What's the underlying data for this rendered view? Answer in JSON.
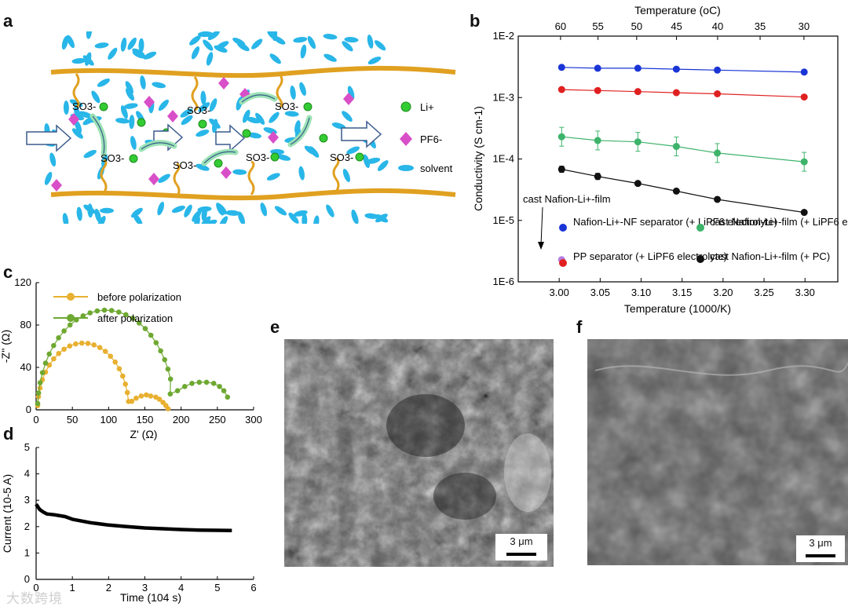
{
  "panel_labels": {
    "a": "a",
    "b": "b",
    "c": "c",
    "d": "d",
    "e": "e",
    "f": "f"
  },
  "schematic": {
    "groups": [
      "SO3-",
      "SO3-",
      "SO3-",
      "SO3-",
      "SO3-",
      "SO3-",
      "SO3-"
    ],
    "legend": [
      {
        "label": "Li+",
        "icon": "li-ion-circle",
        "color": "#33cc33"
      },
      {
        "label": "PF6-",
        "icon": "pf6-diamond",
        "color": "#d94fc8"
      },
      {
        "label": "solvent",
        "icon": "solvent-ellipse",
        "color": "#29b6e8"
      }
    ],
    "colors": {
      "membrane": "#e0a020",
      "li": "#33cc33",
      "pf6": "#d94fc8",
      "solvent": "#29b6e8",
      "arrow": "#3a5a8c"
    }
  },
  "scale_bars": {
    "e": "3 μm",
    "f": "3 μm"
  },
  "watermark": "大数跨境",
  "chart_data": [
    {
      "id": "b",
      "type": "scatter",
      "xlabel": "Temperature (1000/K)",
      "ylabel": "Conductivity (S cm-1)",
      "top_xlabel": "Temperature (oC)",
      "xlim": [
        2.95,
        3.34
      ],
      "ylim": [
        1e-06,
        0.01
      ],
      "yscale": "log",
      "xticks": [
        "3.00",
        "3.05",
        "3.10",
        "3.15",
        "3.20",
        "3.25",
        "3.30"
      ],
      "yticks": [
        "1E-6",
        "1E-5",
        "1E-4",
        "1E-3",
        "1E-2"
      ],
      "top_xticks": [
        "60",
        "55",
        "50",
        "45",
        "40",
        "35",
        "30"
      ],
      "annotation": "cast Nafion-Li+-film",
      "series": [
        {
          "name": "Nafion-Li+-NF separator (+ LiPF6 electrolyte)",
          "color": "#1a35d6",
          "x": [
            3.003,
            3.047,
            3.096,
            3.143,
            3.193,
            3.299
          ],
          "y": [
            0.0031,
            0.003,
            0.003,
            0.0029,
            0.0028,
            0.0026
          ]
        },
        {
          "name": "PP separator (+ LiPF6 electrolyte)",
          "color": "#e02020",
          "x": [
            3.003,
            3.047,
            3.096,
            3.143,
            3.193,
            3.299
          ],
          "y": [
            0.00135,
            0.0013,
            0.00125,
            0.0012,
            0.00115,
            0.00102
          ]
        },
        {
          "name": "cast Nafion-Li+-film (+ LiPF6 electrolyte)",
          "color": "#3db36b",
          "x": [
            3.003,
            3.047,
            3.096,
            3.143,
            3.193,
            3.299
          ],
          "y": [
            0.00023,
            0.0002,
            0.00019,
            0.00016,
            0.000125,
            9e-05
          ]
        },
        {
          "name": "cast Nafion-Li+-film (+ PC)",
          "color": "#111111",
          "x": [
            3.003,
            3.047,
            3.096,
            3.143,
            3.193,
            3.299
          ],
          "y": [
            6.8e-05,
            5.2e-05,
            4e-05,
            3e-05,
            2.2e-05,
            1.35e-05
          ]
        },
        {
          "name": "cast Nafion-Li+-film",
          "color": "#b57ee0",
          "x": [
            3.003
          ],
          "y": [
            2.3e-06
          ]
        }
      ]
    },
    {
      "id": "c",
      "type": "line",
      "xlabel": "Z' (Ω)",
      "ylabel": "-Z'' (Ω)",
      "xlim": [
        0,
        300
      ],
      "ylim": [
        0,
        120
      ],
      "xticks": [
        "0",
        "50",
        "100",
        "150",
        "200",
        "250",
        "300"
      ],
      "yticks": [
        "0",
        "40",
        "80",
        "120"
      ],
      "series": [
        {
          "name": "before polarization",
          "color": "#e8b030"
        },
        {
          "name": "after polarization",
          "color": "#6ea832"
        }
      ]
    },
    {
      "id": "d",
      "type": "line",
      "xlabel": "Time (104 s)",
      "ylabel": "Current (10-5 A)",
      "xlim": [
        0,
        6
      ],
      "ylim": [
        0,
        5
      ],
      "xticks": [
        "0",
        "1",
        "2",
        "3",
        "4",
        "5",
        "6"
      ],
      "yticks": [
        "0",
        "1",
        "2",
        "3",
        "4",
        "5"
      ],
      "series": [
        {
          "name": "current",
          "color": "#000000",
          "x": [
            0,
            0.1,
            0.2,
            0.3,
            0.5,
            0.8,
            1.0,
            1.5,
            2.0,
            2.5,
            3.0,
            3.5,
            4.0,
            4.5,
            5.0,
            5.4
          ],
          "y": [
            2.85,
            2.65,
            2.55,
            2.48,
            2.45,
            2.38,
            2.28,
            2.15,
            2.06,
            2.0,
            1.95,
            1.92,
            1.89,
            1.87,
            1.86,
            1.85
          ]
        }
      ]
    }
  ]
}
